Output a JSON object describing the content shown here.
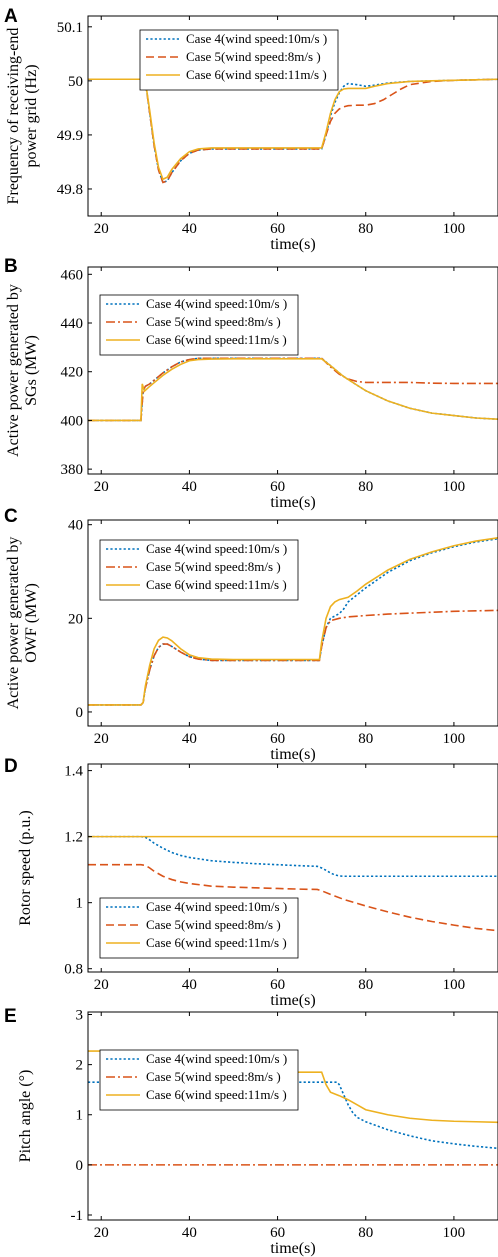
{
  "chart_data": [
    {
      "type": "line",
      "panel": "A",
      "xlabel": "time(s)",
      "ylabel": [
        "Frequency of receiving-end",
        "power grid (Hz)"
      ],
      "xlim": [
        17,
        110
      ],
      "ylim": [
        49.75,
        50.12
      ],
      "xticks": [
        20,
        40,
        60,
        80,
        100
      ],
      "yticks": [
        49.8,
        49.9,
        50,
        50.1
      ],
      "ytick_labels": [
        "49.8",
        "49.9",
        "50",
        "50.1"
      ],
      "legend_position": "top-center",
      "series": [
        {
          "name": "Case 4(wind speed:10m/s )",
          "color": "#0072BD",
          "dash": "dotted",
          "x": [
            17,
            29.5,
            30,
            31,
            32,
            33,
            34,
            35,
            36,
            38,
            40,
            42,
            45,
            50,
            55,
            60,
            65,
            69.5,
            70,
            71,
            72,
            73,
            74,
            75,
            76,
            78,
            80,
            82,
            85,
            90,
            95,
            100,
            105,
            110
          ],
          "y": [
            50.003,
            50.003,
            50.0,
            49.94,
            49.88,
            49.835,
            49.812,
            49.815,
            49.83,
            49.852,
            49.866,
            49.872,
            49.874,
            49.874,
            49.874,
            49.874,
            49.874,
            49.874,
            49.874,
            49.9,
            49.935,
            49.96,
            49.978,
            49.99,
            49.995,
            49.993,
            49.99,
            49.992,
            49.996,
            49.999,
            50.0,
            50.001,
            50.002,
            50.003
          ]
        },
        {
          "name": "Case 5(wind speed:8m/s )",
          "color": "#D95319",
          "dash": "dashed",
          "x": [
            17,
            29.5,
            30,
            31,
            32,
            33,
            34,
            35,
            36,
            38,
            40,
            42,
            45,
            50,
            55,
            60,
            65,
            69.5,
            70,
            71,
            72,
            73,
            74,
            75,
            76,
            78,
            80,
            82,
            84,
            86,
            88,
            90,
            95,
            100,
            105,
            110
          ],
          "y": [
            50.003,
            50.003,
            50.0,
            49.94,
            49.88,
            49.835,
            49.812,
            49.815,
            49.83,
            49.852,
            49.866,
            49.872,
            49.874,
            49.874,
            49.874,
            49.874,
            49.874,
            49.874,
            49.874,
            49.9,
            49.925,
            49.94,
            49.948,
            49.952,
            49.954,
            49.955,
            49.955,
            49.958,
            49.965,
            49.975,
            49.985,
            49.993,
            49.999,
            50.001,
            50.002,
            50.003
          ]
        },
        {
          "name": "Case 6(wind speed:11m/s )",
          "color": "#EDB120",
          "dash": "solid",
          "x": [
            17,
            29.5,
            30,
            31,
            32,
            33,
            34,
            35,
            36,
            38,
            40,
            42,
            45,
            50,
            55,
            60,
            65,
            69.5,
            70,
            71,
            72,
            73,
            74,
            75,
            76,
            78,
            80,
            82,
            85,
            90,
            95,
            100,
            105,
            110
          ],
          "y": [
            50.003,
            50.003,
            50.0,
            49.945,
            49.885,
            49.84,
            49.818,
            49.822,
            49.836,
            49.856,
            49.869,
            49.874,
            49.876,
            49.876,
            49.876,
            49.876,
            49.876,
            49.876,
            49.876,
            49.905,
            49.94,
            49.965,
            49.98,
            49.985,
            49.986,
            49.986,
            49.986,
            49.99,
            49.995,
            49.999,
            50.0,
            50.001,
            50.002,
            50.003
          ]
        }
      ]
    },
    {
      "type": "line",
      "panel": "B",
      "xlabel": "time(s)",
      "ylabel": [
        "Active power generated by",
        "SGs (MW)"
      ],
      "xlim": [
        17,
        110
      ],
      "ylim": [
        378,
        463
      ],
      "xticks": [
        20,
        40,
        60,
        80,
        100
      ],
      "yticks": [
        380,
        400,
        420,
        440,
        460
      ],
      "ytick_labels": [
        "380",
        "400",
        "420",
        "440",
        "460"
      ],
      "legend_position": "top-left",
      "series": [
        {
          "name": "Case 4(wind speed:10m/s )",
          "color": "#0072BD",
          "dash": "dotted",
          "x": [
            17,
            29,
            29.5,
            30,
            31,
            32,
            34,
            36,
            38,
            40,
            42,
            45,
            50,
            55,
            60,
            65,
            69.5,
            70,
            72,
            75,
            78,
            80,
            85,
            90,
            95,
            100,
            105,
            110
          ],
          "y": [
            400,
            400,
            412,
            414,
            415,
            416.5,
            419.5,
            422,
            424,
            425,
            425.5,
            425.5,
            425.5,
            425.5,
            425.5,
            425.5,
            425.5,
            425.5,
            422.5,
            418,
            414.5,
            412.2,
            408,
            405,
            403,
            402,
            401,
            400.5
          ]
        },
        {
          "name": "Case 5(wind speed:8m/s )",
          "color": "#D95319",
          "dash": "dashdot",
          "x": [
            17,
            29,
            29.5,
            30,
            31,
            32,
            34,
            36,
            38,
            40,
            42,
            45,
            50,
            55,
            60,
            65,
            69.5,
            70,
            72,
            74,
            76,
            78,
            80,
            85,
            90,
            95,
            100,
            105,
            110
          ],
          "y": [
            400,
            400,
            412,
            414,
            415,
            416.5,
            419.5,
            422,
            424,
            425,
            425.5,
            425.5,
            425.5,
            425.5,
            425.5,
            425.5,
            425.5,
            425.5,
            422,
            419,
            417,
            416,
            415.6,
            415.6,
            415.6,
            415.3,
            415.2,
            415.2,
            415.2
          ]
        },
        {
          "name": "Case 6(wind speed:11m/s )",
          "color": "#EDB120",
          "dash": "solid",
          "x": [
            17,
            29,
            29.3,
            29.8,
            31,
            32,
            34,
            36,
            38,
            40,
            42,
            45,
            50,
            55,
            60,
            65,
            69.5,
            70,
            72,
            75,
            78,
            80,
            85,
            90,
            95,
            100,
            105,
            110
          ],
          "y": [
            400,
            400,
            415,
            412,
            414,
            415.5,
            418.5,
            421,
            423,
            424.5,
            425,
            425.2,
            425.3,
            425.3,
            425.3,
            425.3,
            425.3,
            425.3,
            422.5,
            418,
            414.5,
            412.2,
            408,
            405,
            403,
            402,
            401,
            400.5
          ]
        }
      ]
    },
    {
      "type": "line",
      "panel": "C",
      "xlabel": "time(s)",
      "ylabel": [
        "Active power generated by",
        "OWF (MW)"
      ],
      "xlim": [
        17,
        110
      ],
      "ylim": [
        -3,
        41
      ],
      "xticks": [
        20,
        40,
        60,
        80,
        100
      ],
      "yticks": [
        0,
        20,
        40
      ],
      "ytick_labels": [
        "0",
        "20",
        "40"
      ],
      "legend_position": "top-left",
      "series": [
        {
          "name": "Case 4(wind speed:10m/s )",
          "color": "#0072BD",
          "dash": "dotted",
          "x": [
            17,
            29,
            29.5,
            30,
            31,
            32,
            33,
            34,
            35,
            36,
            38,
            40,
            42,
            45,
            50,
            55,
            60,
            65,
            69.5,
            70,
            71,
            72,
            74,
            75,
            76,
            78,
            80,
            85,
            90,
            95,
            100,
            105,
            110
          ],
          "y": [
            1.5,
            1.5,
            2,
            5,
            9,
            12,
            13.8,
            14.5,
            14.5,
            14,
            12.8,
            11.8,
            11.3,
            11,
            11,
            11,
            11,
            11,
            11,
            14,
            18,
            20,
            21,
            22,
            23.5,
            25,
            26.5,
            29.8,
            32.3,
            34,
            35.3,
            36.3,
            37
          ]
        },
        {
          "name": "Case 5(wind speed:8m/s )",
          "color": "#D95319",
          "dash": "dashdot",
          "x": [
            17,
            29,
            29.5,
            30,
            31,
            32,
            33,
            34,
            35,
            36,
            38,
            40,
            42,
            45,
            50,
            55,
            60,
            65,
            69.5,
            70,
            71,
            72,
            74,
            76,
            80,
            85,
            90,
            95,
            100,
            105,
            110
          ],
          "y": [
            1.5,
            1.5,
            2,
            5,
            9,
            12,
            13.8,
            14.5,
            14.5,
            14,
            12.8,
            11.8,
            11.3,
            11,
            11,
            11,
            11,
            11,
            11,
            14,
            18,
            19.5,
            20,
            20.3,
            20.6,
            20.9,
            21.1,
            21.3,
            21.5,
            21.6,
            21.7
          ]
        },
        {
          "name": "Case 6(wind speed:11m/s )",
          "color": "#EDB120",
          "dash": "solid",
          "x": [
            17,
            29,
            29.5,
            30,
            31,
            32,
            33,
            34,
            35,
            36,
            38,
            40,
            42,
            45,
            50,
            55,
            60,
            65,
            69.5,
            70,
            71,
            72,
            73,
            74,
            76,
            78,
            80,
            85,
            90,
            95,
            100,
            105,
            110
          ],
          "y": [
            1.5,
            1.5,
            2,
            5.5,
            10,
            13.5,
            15.3,
            16,
            15.8,
            15.2,
            13.5,
            12.2,
            11.6,
            11.3,
            11.2,
            11.2,
            11.2,
            11.2,
            11.2,
            15,
            20,
            22.5,
            23.5,
            24,
            24.5,
            25.8,
            27.3,
            30.3,
            32.6,
            34.2,
            35.5,
            36.5,
            37.2
          ]
        }
      ]
    },
    {
      "type": "line",
      "panel": "D",
      "xlabel": "time(s)",
      "ylabel": [
        "Rotor speed  (p.u.)"
      ],
      "xlim": [
        17,
        110
      ],
      "ylim": [
        0.79,
        1.42
      ],
      "xticks": [
        20,
        40,
        60,
        80,
        100
      ],
      "yticks": [
        0.8,
        1.0,
        1.2,
        1.4
      ],
      "ytick_labels": [
        "0.8",
        "1",
        "1.2",
        "1.4"
      ],
      "legend_position": "bottom-left",
      "series": [
        {
          "name": "Case 4(wind speed:10m/s )",
          "color": "#0072BD",
          "dash": "dotted",
          "x": [
            17,
            29,
            30,
            31,
            32,
            34,
            36,
            38,
            40,
            45,
            50,
            55,
            60,
            65,
            69,
            70,
            71,
            72,
            73,
            74,
            75,
            76,
            80,
            90,
            100,
            110
          ],
          "y": [
            1.2,
            1.2,
            1.198,
            1.19,
            1.18,
            1.165,
            1.152,
            1.143,
            1.137,
            1.127,
            1.122,
            1.118,
            1.115,
            1.112,
            1.11,
            1.105,
            1.098,
            1.09,
            1.084,
            1.081,
            1.08,
            1.08,
            1.08,
            1.08,
            1.08,
            1.08
          ]
        },
        {
          "name": "Case 5(wind speed:8m/s )",
          "color": "#D95319",
          "dash": "dashed",
          "x": [
            17,
            29,
            30,
            31,
            32,
            34,
            36,
            38,
            40,
            45,
            50,
            55,
            60,
            65,
            69,
            70,
            72,
            75,
            80,
            85,
            90,
            95,
            100,
            105,
            110
          ],
          "y": [
            1.115,
            1.115,
            1.113,
            1.105,
            1.095,
            1.08,
            1.07,
            1.063,
            1.058,
            1.05,
            1.047,
            1.045,
            1.043,
            1.041,
            1.04,
            1.036,
            1.025,
            1.01,
            0.99,
            0.972,
            0.956,
            0.943,
            0.932,
            0.922,
            0.915
          ]
        },
        {
          "name": "Case 6(wind speed:11m/s )",
          "color": "#EDB120",
          "dash": "solid",
          "x": [
            17,
            110
          ],
          "y": [
            1.2,
            1.2
          ]
        }
      ]
    },
    {
      "type": "line",
      "panel": "E",
      "xlabel": "time(s)",
      "ylabel": [
        "Pitch angle (°)"
      ],
      "xlim": [
        17,
        110
      ],
      "ylim": [
        -1.1,
        3.05
      ],
      "xticks": [
        20,
        40,
        60,
        80,
        100
      ],
      "yticks": [
        -1,
        0,
        1,
        2,
        3
      ],
      "ytick_labels": [
        "-1",
        "0",
        "1",
        "2",
        "3"
      ],
      "legend_position": "bottom-left",
      "series": [
        {
          "name": "Case 4(wind speed:10m/s )",
          "color": "#0072BD",
          "dash": "dotted",
          "x": [
            17,
            73.5,
            74,
            75,
            76,
            77,
            78,
            80,
            85,
            90,
            95,
            100,
            105,
            110
          ],
          "y": [
            1.65,
            1.65,
            1.6,
            1.4,
            1.2,
            1.05,
            0.95,
            0.86,
            0.7,
            0.58,
            0.48,
            0.42,
            0.37,
            0.33
          ]
        },
        {
          "name": "Case 5(wind speed:8m/s )",
          "color": "#D95319",
          "dash": "dashdot",
          "x": [
            17,
            110
          ],
          "y": [
            0,
            0
          ]
        },
        {
          "name": "Case 6(wind speed:11m/s )",
          "color": "#EDB120",
          "dash": "solid",
          "x": [
            17,
            29.5,
            30,
            31,
            32,
            33,
            34,
            35,
            36,
            38,
            40,
            45,
            50,
            55,
            60,
            65,
            69.5,
            70,
            71,
            72,
            74,
            76,
            78,
            80,
            85,
            90,
            95,
            100,
            105,
            110
          ],
          "y": [
            2.27,
            2.27,
            2.2,
            1.98,
            1.8,
            1.7,
            1.66,
            1.66,
            1.69,
            1.75,
            1.8,
            1.84,
            1.85,
            1.85,
            1.85,
            1.85,
            1.85,
            1.85,
            1.6,
            1.45,
            1.38,
            1.3,
            1.2,
            1.1,
            1.0,
            0.93,
            0.89,
            0.87,
            0.86,
            0.85
          ]
        }
      ]
    }
  ]
}
